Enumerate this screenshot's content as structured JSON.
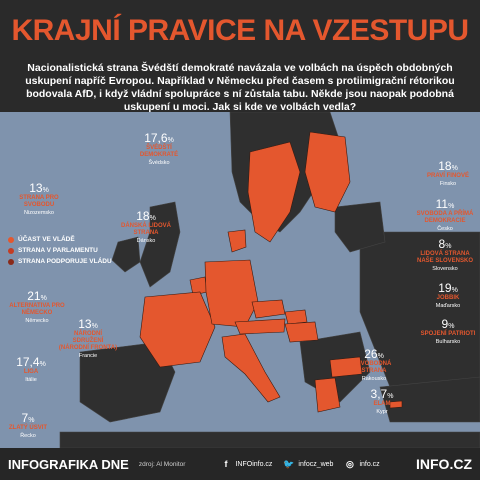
{
  "title": "KRAJNÍ PRAVICE NA VZESTUPU",
  "intro": "Nacionalistická strana Švédští demokraté navázala ve volbách na úspěch obdobných uskupení napříč Evropou. Například v Německu před časem s protiimigrační rétorikou bodovala AfD, i když vládní spolupráce s ní zůstala tabu. Někde jsou naopak podobná uskupení u moci. Jak si kde ve volbách vedla?",
  "legend": [
    {
      "label": "ÚČAST VE VLÁDĚ",
      "color": "#e4572e"
    },
    {
      "label": "STRANA V PARLAMENTU",
      "color": "#c43d24"
    },
    {
      "label": "STRANA PODPORUJE VLÁDU",
      "color": "#8a2a1a"
    }
  ],
  "colors": {
    "accent": "#e4572e",
    "government": "#e4572e",
    "parliament": "#c43d24",
    "support": "#8a2a1a",
    "land": "#2f2f2f",
    "sea": "#7f93ad"
  },
  "labels": {
    "se": {
      "pct": "17,6",
      "party": "ŠVÉDŠTÍ DEMOKRATÉ",
      "country": "Švédsko"
    },
    "nl": {
      "pct": "13",
      "party": "STRANA PRO SVOBODU",
      "country": "Nizozemsko"
    },
    "dk": {
      "pct": "18",
      "party": "DÁNSKÁ LIDOVÁ STRANA",
      "country": "Dánsko"
    },
    "de": {
      "pct": "21",
      "party": "ALTERNATIVA PRO NĚMECKO",
      "country": "Německo"
    },
    "fr": {
      "pct": "13",
      "party": "NÁRODNÍ SDRUŽENÍ (NÁRODNÍ FRONTA)",
      "country": "Francie"
    },
    "it": {
      "pct": "17,4",
      "party": "LIGA",
      "country": "Itálie"
    },
    "gr": {
      "pct": "7",
      "party": "ZLATÝ ÚSVIT",
      "country": "Řecko"
    },
    "fi": {
      "pct": "18",
      "party": "PRAVÍ FINOVÉ",
      "country": "Finsko"
    },
    "cz": {
      "pct": "11",
      "party": "SVOBODA A PŘÍMÁ DEMOKRACIE",
      "country": "Česko"
    },
    "sk": {
      "pct": "8",
      "party": "LIDOVÁ STRANA NAŠE SLOVENSKO",
      "country": "Slovensko"
    },
    "hu": {
      "pct": "19",
      "party": "JOBBIK",
      "country": "Maďarsko"
    },
    "bg": {
      "pct": "9",
      "party": "SPOJENÍ PATRIOTI",
      "country": "Bulharsko"
    },
    "at": {
      "pct": "26",
      "party": "SVOBODNÁ STRANA",
      "country": "Rakousko"
    },
    "cy": {
      "pct": "3,7",
      "party": "ELAM",
      "country": "Kypr"
    }
  },
  "percent_sign": "%",
  "footer": {
    "brand": "INFOGRAFIKA DNE",
    "source": "zdroj: Al Monitor",
    "facebook": "INFOinfo.cz",
    "twitter": "infocz_web",
    "instagram": "info.cz",
    "logo": "INFO.CZ"
  }
}
